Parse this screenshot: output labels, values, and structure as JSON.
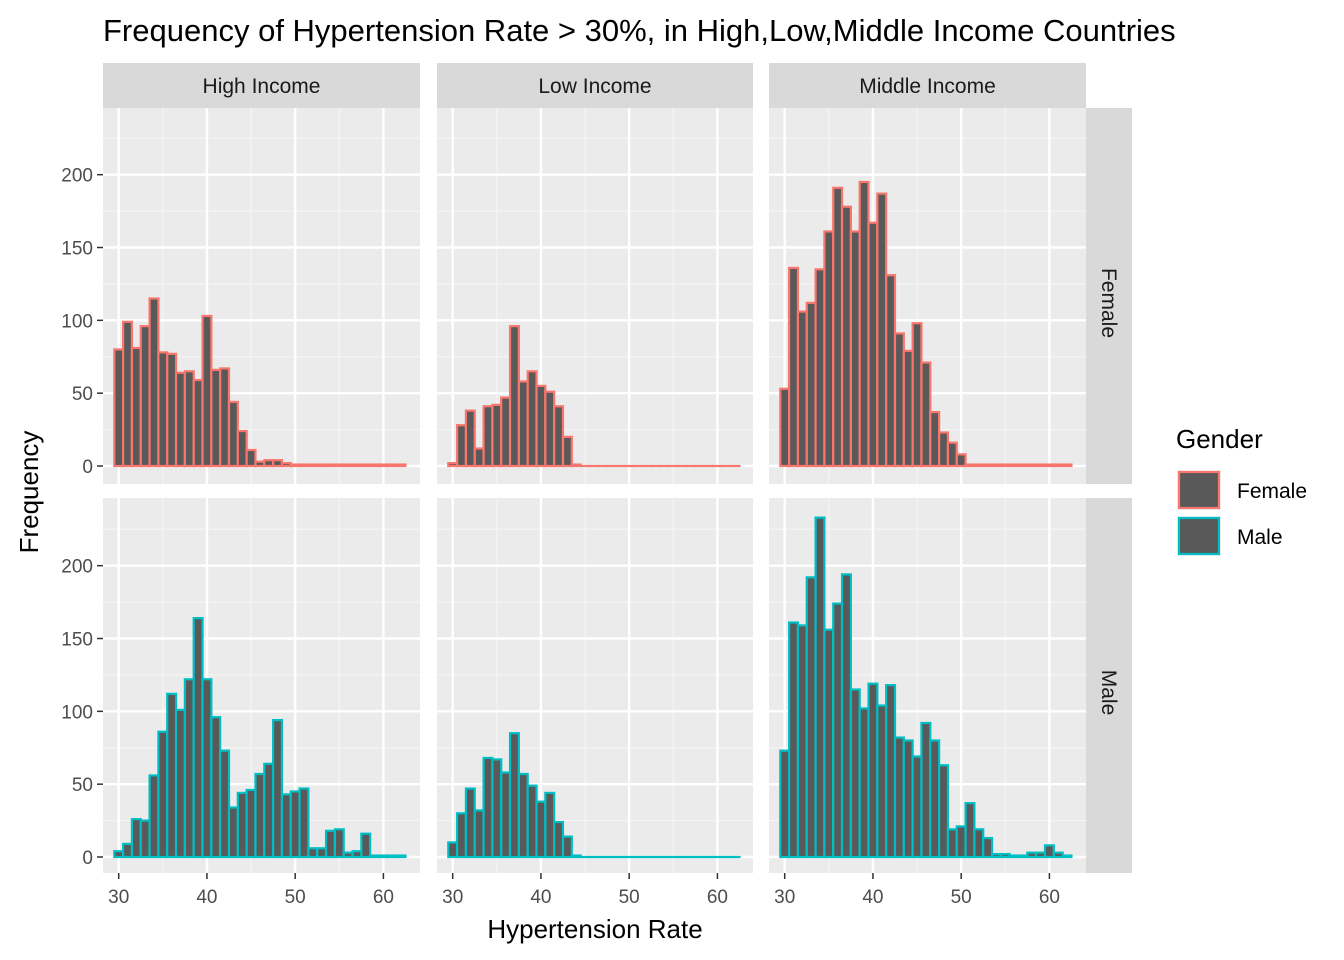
{
  "chart_data": {
    "type": "bar",
    "subtype": "faceted histogram",
    "title": "Frequency of Hypertension Rate > 30%, in High,Low,Middle Income Countries",
    "xlabel": "Hypertension Rate",
    "ylabel": "Frequency",
    "xlim": [
      29,
      63
    ],
    "ylim": [
      0,
      240
    ],
    "x_ticks": [
      30,
      40,
      50,
      60
    ],
    "y_ticks": [
      0,
      50,
      100,
      150,
      200
    ],
    "grid": true,
    "bin_width": 1,
    "bin_start": 29.5,
    "column_facets": [
      "High Income",
      "Low Income",
      "Middle Income"
    ],
    "row_facets": [
      "Female",
      "Male"
    ],
    "legend": {
      "title": "Gender",
      "position": "right",
      "entries": [
        {
          "label": "Female",
          "color": "#F8766D"
        },
        {
          "label": "Male",
          "color": "#00BFC4"
        }
      ]
    },
    "bar_fill": "#595959",
    "series": [
      {
        "name": "Female",
        "color": "#F8766D",
        "panels": [
          {
            "facet": "High Income",
            "values": [
              80,
              99,
              81,
              96,
              115,
              78,
              77,
              64,
              65,
              59,
              103,
              66,
              67,
              44,
              24,
              11,
              3,
              4,
              4,
              2,
              1,
              1,
              1,
              1,
              1,
              1,
              1,
              1,
              1,
              1,
              1,
              1,
              1
            ]
          },
          {
            "facet": "Low Income",
            "values": [
              2,
              28,
              38,
              12,
              41,
              42,
              47,
              96,
              58,
              65,
              55,
              51,
              41,
              20,
              1,
              0,
              0,
              0,
              0,
              0,
              0,
              0,
              0,
              0,
              0,
              0,
              0,
              0,
              0,
              0,
              0,
              0,
              0
            ]
          },
          {
            "facet": "Middle Income",
            "values": [
              53,
              136,
              106,
              112,
              135,
              161,
              191,
              178,
              161,
              195,
              167,
              187,
              131,
              91,
              79,
              98,
              71,
              37,
              23,
              16,
              8,
              1,
              1,
              1,
              1,
              1,
              1,
              1,
              1,
              1,
              1,
              1,
              1
            ]
          }
        ]
      },
      {
        "name": "Male",
        "color": "#00BFC4",
        "panels": [
          {
            "facet": "High Income",
            "values": [
              4,
              9,
              26,
              25,
              56,
              86,
              112,
              101,
              122,
              164,
              122,
              96,
              73,
              34,
              44,
              46,
              57,
              64,
              94,
              43,
              45,
              47,
              6,
              6,
              18,
              19,
              3,
              4,
              16,
              1,
              1,
              1,
              1
            ]
          },
          {
            "facet": "Low Income",
            "values": [
              10,
              30,
              47,
              32,
              68,
              67,
              58,
              85,
              57,
              49,
              38,
              44,
              24,
              14,
              1,
              0,
              0,
              0,
              0,
              0,
              0,
              0,
              0,
              0,
              0,
              0,
              0,
              0,
              0,
              0,
              0,
              0,
              0
            ]
          },
          {
            "facet": "Middle Income",
            "values": [
              73,
              161,
              159,
              192,
              233,
              156,
              174,
              194,
              115,
              102,
              119,
              104,
              118,
              82,
              80,
              69,
              92,
              80,
              63,
              19,
              21,
              37,
              19,
              13,
              2,
              2,
              1,
              1,
              3,
              3,
              8,
              3,
              1
            ]
          }
        ]
      }
    ]
  }
}
